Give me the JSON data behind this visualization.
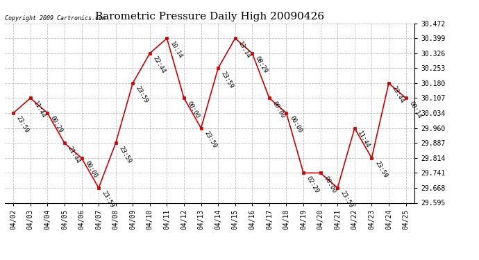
{
  "title": "Barometric Pressure Daily High 20090426",
  "copyright": "Copyright 2009 Cartronics.com",
  "x_labels": [
    "04/02",
    "04/03",
    "04/04",
    "04/05",
    "04/06",
    "04/07",
    "04/08",
    "04/09",
    "04/10",
    "04/11",
    "04/12",
    "04/13",
    "04/14",
    "04/15",
    "04/16",
    "04/17",
    "04/18",
    "04/19",
    "04/20",
    "04/21",
    "04/22",
    "04/23",
    "04/24",
    "04/25"
  ],
  "y_values": [
    30.034,
    30.107,
    30.034,
    29.887,
    29.814,
    29.668,
    29.887,
    30.18,
    30.326,
    30.399,
    30.107,
    29.96,
    30.253,
    30.399,
    30.326,
    30.107,
    30.034,
    29.741,
    29.741,
    29.668,
    29.96,
    29.814,
    30.18,
    30.107
  ],
  "time_labels": [
    "23:59",
    "11:44",
    "00:29",
    "21:44",
    "00:00",
    "23:59",
    "23:59",
    "23:59",
    "22:44",
    "10:14",
    "00:00",
    "23:59",
    "23:59",
    "13:14",
    "08:29",
    "00:00",
    "00:00",
    "02:29",
    "00:00",
    "23:59",
    "11:44",
    "23:59",
    "23:44",
    "00:14"
  ],
  "y_ticks": [
    29.595,
    29.668,
    29.741,
    29.814,
    29.887,
    29.96,
    30.034,
    30.107,
    30.18,
    30.253,
    30.326,
    30.399,
    30.472
  ],
  "y_min": 29.595,
  "y_max": 30.472,
  "line_color": "#cc0000",
  "marker_color": "#cc0000",
  "bg_color": "#ffffff",
  "grid_color": "#b0b0b0",
  "title_fontsize": 11,
  "tick_fontsize": 7,
  "annot_fontsize": 6.5
}
